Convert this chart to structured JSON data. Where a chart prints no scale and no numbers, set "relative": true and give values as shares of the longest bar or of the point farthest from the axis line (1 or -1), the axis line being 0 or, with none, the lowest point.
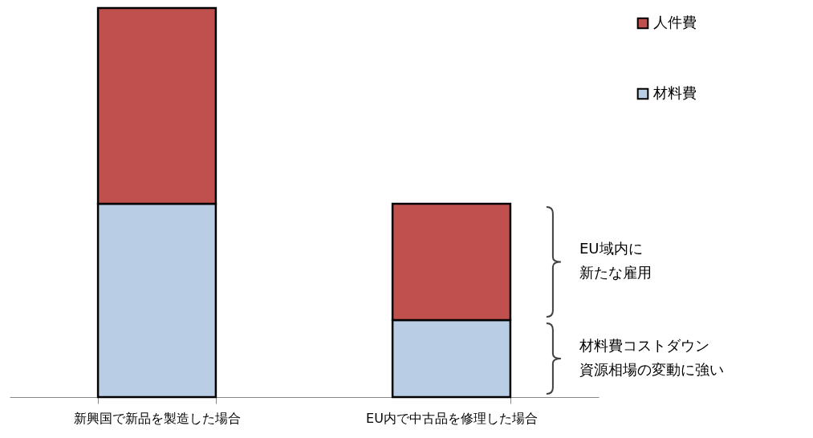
{
  "chart_data": {
    "type": "bar",
    "stacked": true,
    "relative": true,
    "legend": "top right",
    "categories": [
      "新興国で新品を製造した場合",
      "EU内で中古品を修理した場合"
    ],
    "series": [
      {
        "name": "材料費",
        "color": "#b9cde5",
        "values": [
          0.497,
          0.198
        ]
      },
      {
        "name": "人件費",
        "color": "#c0504d",
        "values": [
          0.503,
          0.299
        ]
      }
    ],
    "annotations": [
      "EU域内に",
      "新たな雇用",
      "材料費コストダウン",
      "資源相場の変動に強い"
    ]
  }
}
